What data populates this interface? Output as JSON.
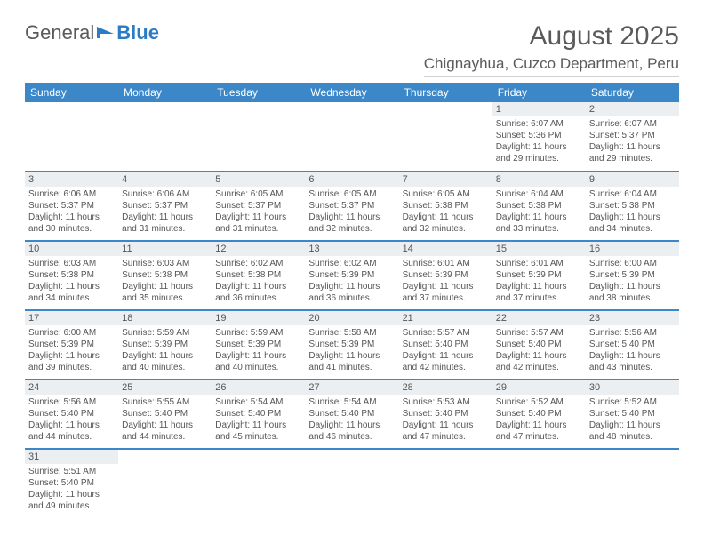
{
  "logo": {
    "part1": "General",
    "part2": "Blue"
  },
  "title": {
    "month": "August 2025",
    "location": "Chignayhua, Cuzco Department, Peru"
  },
  "colors": {
    "header_bg": "#3b87c8",
    "header_text": "#ffffff",
    "daynum_bg": "#eceff1",
    "text": "#555555",
    "border": "#3b87c8"
  },
  "weekdays": [
    "Sunday",
    "Monday",
    "Tuesday",
    "Wednesday",
    "Thursday",
    "Friday",
    "Saturday"
  ],
  "weeks": [
    [
      null,
      null,
      null,
      null,
      null,
      {
        "n": "1",
        "sr": "6:07 AM",
        "ss": "5:36 PM",
        "dl": "11 hours and 29 minutes."
      },
      {
        "n": "2",
        "sr": "6:07 AM",
        "ss": "5:37 PM",
        "dl": "11 hours and 29 minutes."
      }
    ],
    [
      {
        "n": "3",
        "sr": "6:06 AM",
        "ss": "5:37 PM",
        "dl": "11 hours and 30 minutes."
      },
      {
        "n": "4",
        "sr": "6:06 AM",
        "ss": "5:37 PM",
        "dl": "11 hours and 31 minutes."
      },
      {
        "n": "5",
        "sr": "6:05 AM",
        "ss": "5:37 PM",
        "dl": "11 hours and 31 minutes."
      },
      {
        "n": "6",
        "sr": "6:05 AM",
        "ss": "5:37 PM",
        "dl": "11 hours and 32 minutes."
      },
      {
        "n": "7",
        "sr": "6:05 AM",
        "ss": "5:38 PM",
        "dl": "11 hours and 32 minutes."
      },
      {
        "n": "8",
        "sr": "6:04 AM",
        "ss": "5:38 PM",
        "dl": "11 hours and 33 minutes."
      },
      {
        "n": "9",
        "sr": "6:04 AM",
        "ss": "5:38 PM",
        "dl": "11 hours and 34 minutes."
      }
    ],
    [
      {
        "n": "10",
        "sr": "6:03 AM",
        "ss": "5:38 PM",
        "dl": "11 hours and 34 minutes."
      },
      {
        "n": "11",
        "sr": "6:03 AM",
        "ss": "5:38 PM",
        "dl": "11 hours and 35 minutes."
      },
      {
        "n": "12",
        "sr": "6:02 AM",
        "ss": "5:38 PM",
        "dl": "11 hours and 36 minutes."
      },
      {
        "n": "13",
        "sr": "6:02 AM",
        "ss": "5:39 PM",
        "dl": "11 hours and 36 minutes."
      },
      {
        "n": "14",
        "sr": "6:01 AM",
        "ss": "5:39 PM",
        "dl": "11 hours and 37 minutes."
      },
      {
        "n": "15",
        "sr": "6:01 AM",
        "ss": "5:39 PM",
        "dl": "11 hours and 37 minutes."
      },
      {
        "n": "16",
        "sr": "6:00 AM",
        "ss": "5:39 PM",
        "dl": "11 hours and 38 minutes."
      }
    ],
    [
      {
        "n": "17",
        "sr": "6:00 AM",
        "ss": "5:39 PM",
        "dl": "11 hours and 39 minutes."
      },
      {
        "n": "18",
        "sr": "5:59 AM",
        "ss": "5:39 PM",
        "dl": "11 hours and 40 minutes."
      },
      {
        "n": "19",
        "sr": "5:59 AM",
        "ss": "5:39 PM",
        "dl": "11 hours and 40 minutes."
      },
      {
        "n": "20",
        "sr": "5:58 AM",
        "ss": "5:39 PM",
        "dl": "11 hours and 41 minutes."
      },
      {
        "n": "21",
        "sr": "5:57 AM",
        "ss": "5:40 PM",
        "dl": "11 hours and 42 minutes."
      },
      {
        "n": "22",
        "sr": "5:57 AM",
        "ss": "5:40 PM",
        "dl": "11 hours and 42 minutes."
      },
      {
        "n": "23",
        "sr": "5:56 AM",
        "ss": "5:40 PM",
        "dl": "11 hours and 43 minutes."
      }
    ],
    [
      {
        "n": "24",
        "sr": "5:56 AM",
        "ss": "5:40 PM",
        "dl": "11 hours and 44 minutes."
      },
      {
        "n": "25",
        "sr": "5:55 AM",
        "ss": "5:40 PM",
        "dl": "11 hours and 44 minutes."
      },
      {
        "n": "26",
        "sr": "5:54 AM",
        "ss": "5:40 PM",
        "dl": "11 hours and 45 minutes."
      },
      {
        "n": "27",
        "sr": "5:54 AM",
        "ss": "5:40 PM",
        "dl": "11 hours and 46 minutes."
      },
      {
        "n": "28",
        "sr": "5:53 AM",
        "ss": "5:40 PM",
        "dl": "11 hours and 47 minutes."
      },
      {
        "n": "29",
        "sr": "5:52 AM",
        "ss": "5:40 PM",
        "dl": "11 hours and 47 minutes."
      },
      {
        "n": "30",
        "sr": "5:52 AM",
        "ss": "5:40 PM",
        "dl": "11 hours and 48 minutes."
      }
    ],
    [
      {
        "n": "31",
        "sr": "5:51 AM",
        "ss": "5:40 PM",
        "dl": "11 hours and 49 minutes."
      },
      null,
      null,
      null,
      null,
      null,
      null
    ]
  ],
  "labels": {
    "sunrise": "Sunrise:",
    "sunset": "Sunset:",
    "daylight": "Daylight:"
  }
}
